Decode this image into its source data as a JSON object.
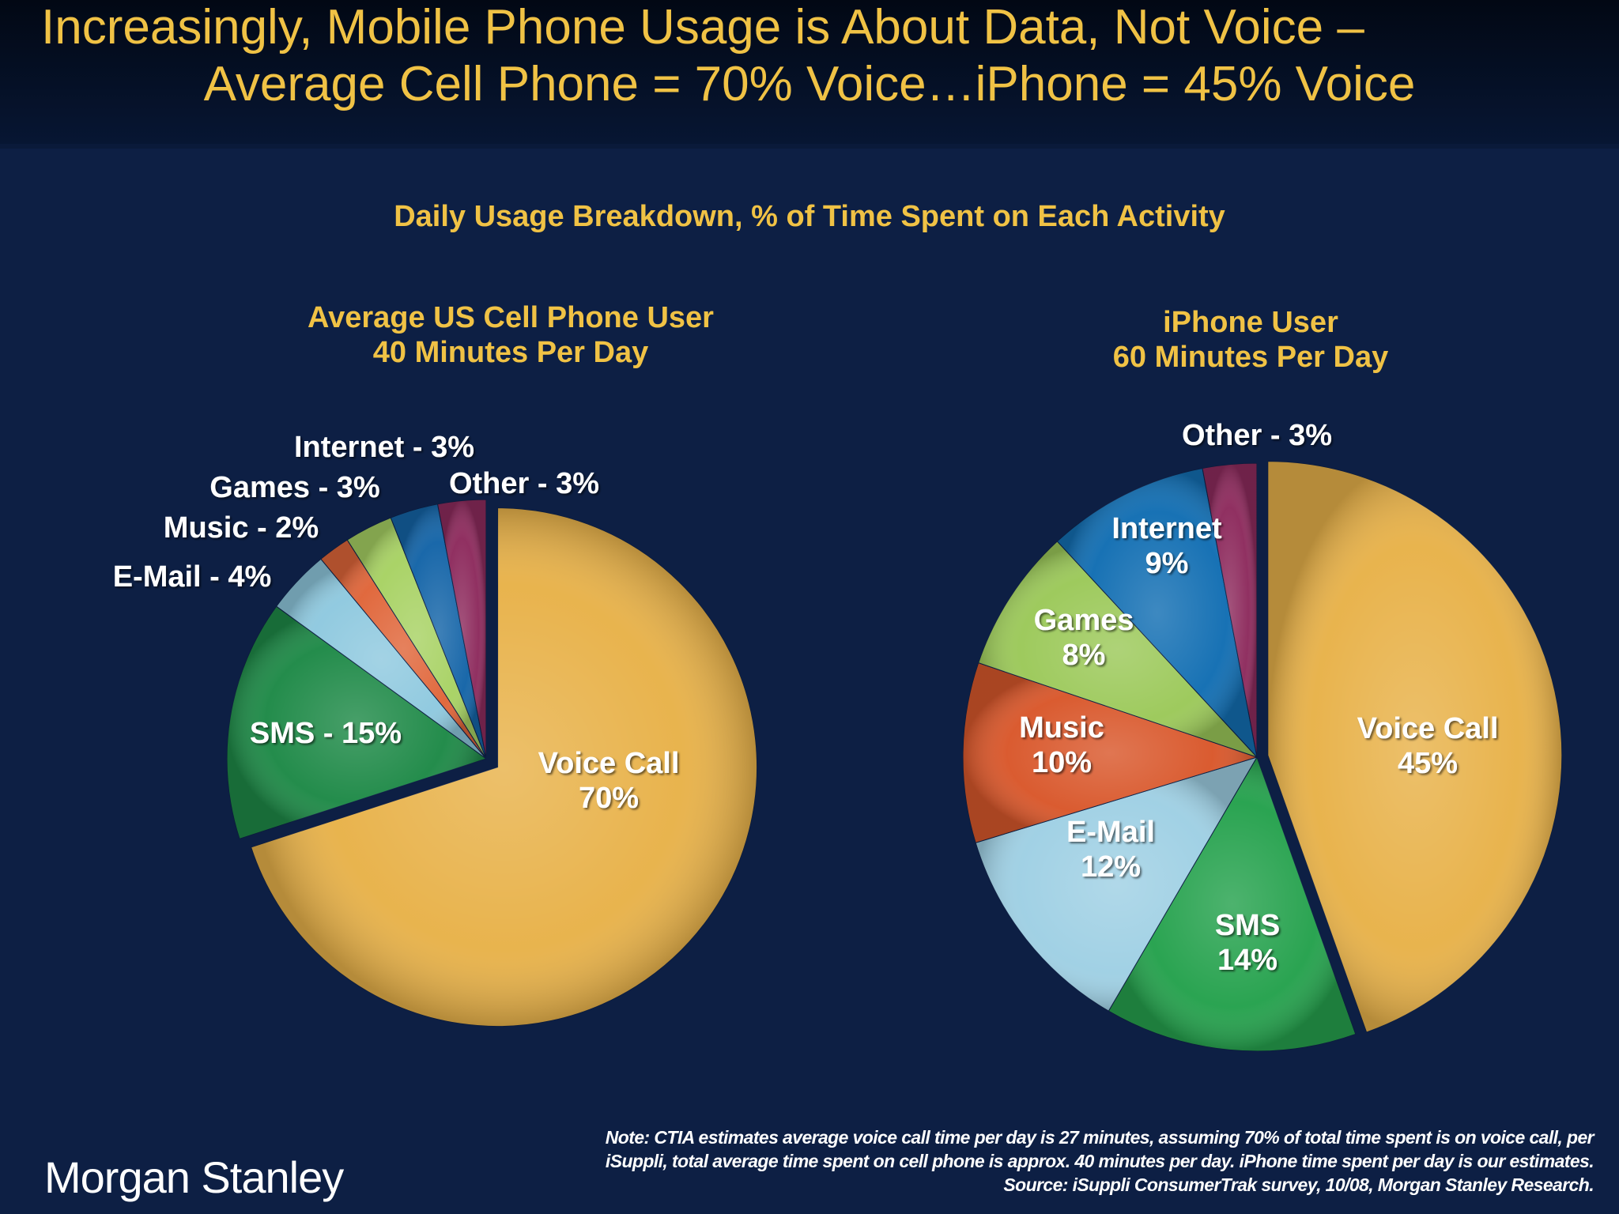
{
  "header": {
    "title_line1": "Increasingly, Mobile Phone Usage is About Data, Not Voice –",
    "title_line2": "Average Cell Phone = 70% Voice…iPhone = 45% Voice"
  },
  "colors": {
    "background": "#0d1f44",
    "title": "#f0c245",
    "label": "#ffffff"
  },
  "chart_data": [
    {
      "type": "pie",
      "section_title": "Daily Usage Breakdown, % of Time Spent on Each Activity",
      "title_line1": "Average US Cell Phone User",
      "title_line2": "40 Minutes Per Day",
      "slices": [
        {
          "label": "Voice Call",
          "value": 70,
          "text": "Voice Call",
          "pct": "70%",
          "color": "#e8b24a",
          "exploded": true
        },
        {
          "label": "SMS",
          "value": 15,
          "text": "SMS - 15%",
          "color": "#1f8a48"
        },
        {
          "label": "E-Mail",
          "value": 4,
          "text": "E-Mail - 4%",
          "color": "#8fc9df"
        },
        {
          "label": "Music",
          "value": 2,
          "text": "Music - 2%",
          "color": "#e0663a"
        },
        {
          "label": "Games",
          "value": 3,
          "text": "Games - 3%",
          "color": "#a8d264"
        },
        {
          "label": "Internet",
          "value": 3,
          "text": "Internet - 3%",
          "color": "#1565a8"
        },
        {
          "label": "Other",
          "value": 3,
          "text": "Other - 3%",
          "color": "#8e2c5e"
        }
      ]
    },
    {
      "type": "pie",
      "title_line1": "iPhone User",
      "title_line2": "60 Minutes Per Day",
      "slices": [
        {
          "label": "Voice Call",
          "value": 45,
          "text": "Voice Call",
          "pct": "45%",
          "color": "#e8b24a",
          "exploded": true
        },
        {
          "label": "SMS",
          "value": 14,
          "text": "SMS",
          "pct": "14%",
          "color": "#26a24e"
        },
        {
          "label": "E-Mail",
          "value": 12,
          "text": "E-Mail",
          "pct": "12%",
          "color": "#9fd0e4"
        },
        {
          "label": "Music",
          "value": 10,
          "text": "Music",
          "pct": "10%",
          "color": "#d9582c"
        },
        {
          "label": "Games",
          "value": 8,
          "text": "Games",
          "pct": "8%",
          "color": "#9cc95a"
        },
        {
          "label": "Internet",
          "value": 9,
          "text": "Internet",
          "pct": "9%",
          "color": "#136fb3"
        },
        {
          "label": "Other",
          "value": 3,
          "text": "Other - 3%",
          "color": "#8e2c5e"
        }
      ]
    }
  ],
  "footer": {
    "note_line1": "Note: CTIA estimates average voice call time per day is 27 minutes, assuming 70% of total time spent is on voice call, per",
    "note_line2": "iSuppli, total average time spent on cell phone is approx. 40 minutes per day. iPhone time spent per day is our estimates.",
    "note_line3": "Source: iSuppli ConsumerTrak survey, 10/08, Morgan Stanley Research.",
    "logo": "Morgan Stanley"
  }
}
